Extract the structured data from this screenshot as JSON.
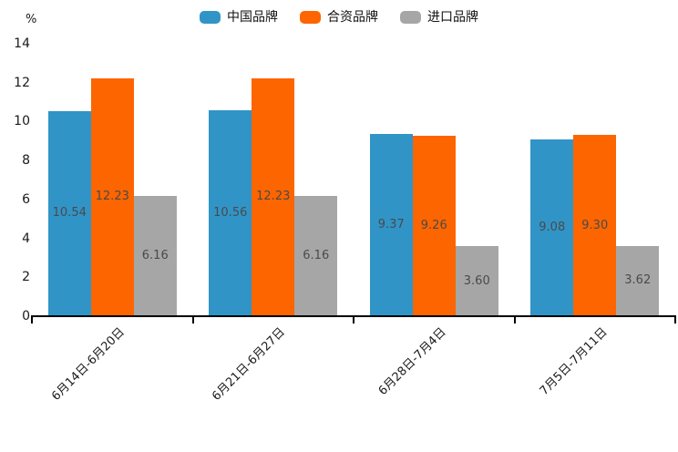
{
  "chart_data": {
    "type": "bar",
    "title": "",
    "unit_label": "%",
    "categories": [
      "6月14日-6月20日",
      "6月21日-6月27日",
      "6月28日-7月4日",
      "7月5日-7月11日"
    ],
    "series": [
      {
        "name": "中国品牌",
        "slug": "china-brand",
        "color": "#3194C7",
        "values": [
          10.54,
          10.56,
          9.37,
          9.08
        ]
      },
      {
        "name": "合资品牌",
        "slug": "joint-venture-brand",
        "color": "#FD6500",
        "values": [
          12.23,
          12.23,
          9.26,
          9.3
        ]
      },
      {
        "name": "进口品牌",
        "slug": "import-brand",
        "color": "#A6A6A6",
        "values": [
          6.16,
          6.16,
          3.6,
          3.62
        ]
      }
    ],
    "ylim": [
      0,
      14
    ],
    "yticks": [
      0,
      2,
      4,
      6,
      8,
      10,
      12,
      14
    ],
    "legend_position": "top-center",
    "grid": false,
    "bar_value_labels": "inside-middle",
    "value_decimals": 2,
    "value_label_color": "#4A4A4A",
    "axis_color": "#000000",
    "text_color": "#1A1A1A",
    "background": "#FFFFFF",
    "x_label_rotation_deg": 45
  }
}
